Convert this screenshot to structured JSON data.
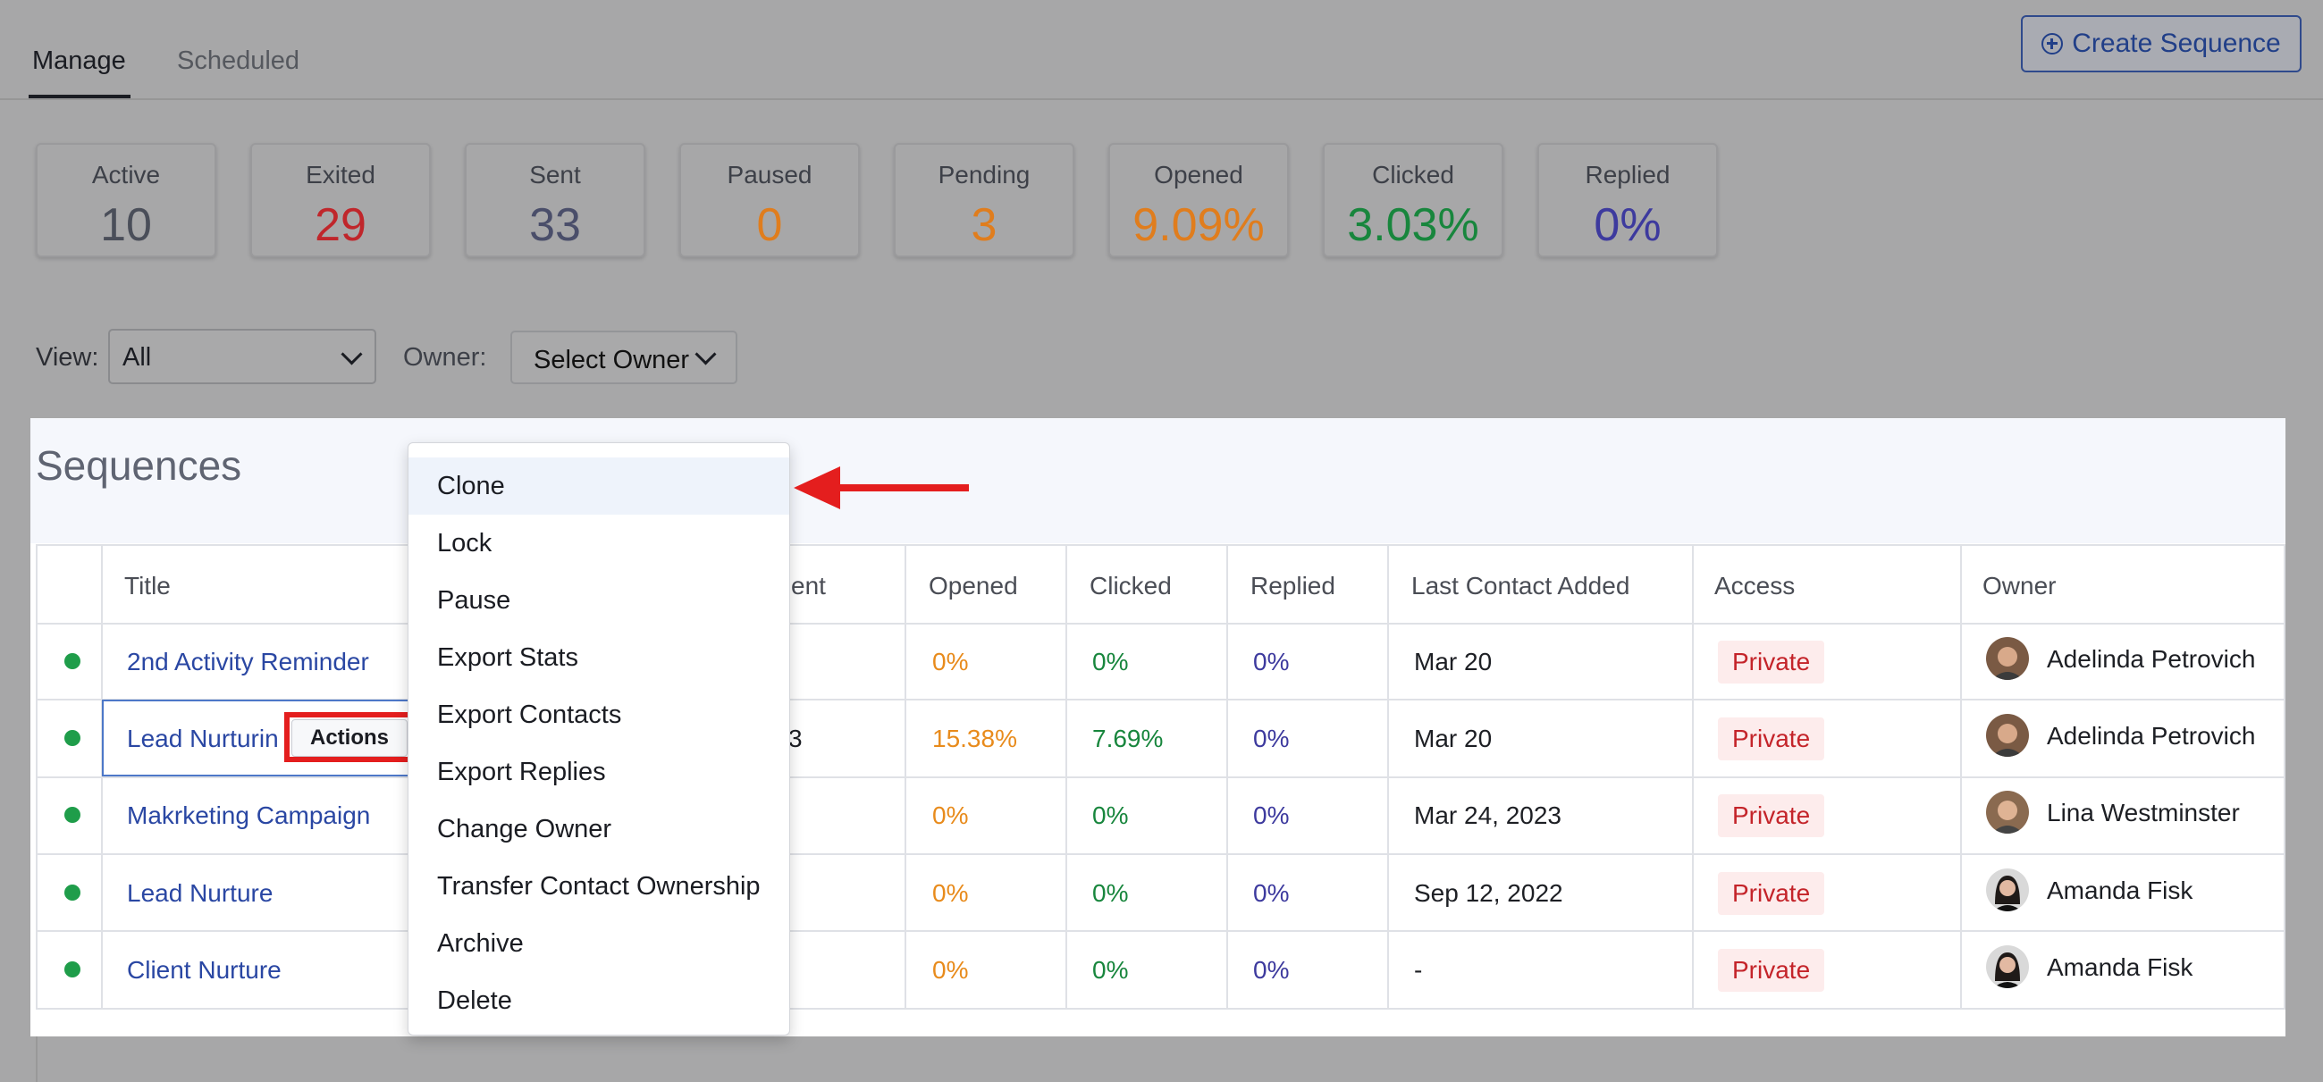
{
  "tabs": [
    {
      "label": "Manage"
    },
    {
      "label": "Scheduled"
    }
  ],
  "create_button": "Create Sequence",
  "stats": [
    {
      "label": "Active",
      "value": "10",
      "color": "#4a4e59"
    },
    {
      "label": "Exited",
      "value": "29",
      "color": "#c0262b"
    },
    {
      "label": "Sent",
      "value": "33",
      "color": "#4a4e6a"
    },
    {
      "label": "Paused",
      "value": "0",
      "color": "#e07d1d"
    },
    {
      "label": "Pending",
      "value": "3",
      "color": "#e07d1d"
    },
    {
      "label": "Opened",
      "value": "9.09%",
      "color": "#e07d1d"
    },
    {
      "label": "Clicked",
      "value": "3.03%",
      "color": "#18863d"
    },
    {
      "label": "Replied",
      "value": "0%",
      "color": "#3d3a9e"
    }
  ],
  "filters": {
    "view_label": "View:",
    "view_value": "All",
    "owner_label": "Owner:",
    "owner_value": "Select Owner"
  },
  "panel_title": "Sequences",
  "table": {
    "headers": [
      "Title",
      "ent",
      "Opened",
      "Clicked",
      "Replied",
      "Last Contact Added",
      "Access",
      "Owner"
    ],
    "rows": [
      {
        "title": "2nd Activity Reminder",
        "sent": "",
        "opened": "0%",
        "clicked": "0%",
        "replied": "0%",
        "last": "Mar 20",
        "access": "Private",
        "owner": "Adelinda Petrovich"
      },
      {
        "title": "Lead Nurturin",
        "sent": "3",
        "opened": "15.38%",
        "clicked": "7.69%",
        "replied": "0%",
        "last": "Mar 20",
        "access": "Private",
        "owner": "Adelinda Petrovich"
      },
      {
        "title": "Makrketing Campaign",
        "sent": "",
        "opened": "0%",
        "clicked": "0%",
        "replied": "0%",
        "last": "Mar 24, 2023",
        "access": "Private",
        "owner": "Lina Westminster"
      },
      {
        "title": "Lead Nurture",
        "sent": "",
        "opened": "0%",
        "clicked": "0%",
        "replied": "0%",
        "last": "Sep 12, 2022",
        "access": "Private",
        "owner": "Amanda Fisk"
      },
      {
        "title": "Client Nurture",
        "sent": "",
        "opened": "0%",
        "clicked": "0%",
        "replied": "0%",
        "last": "-",
        "access": "Private",
        "owner": "Amanda Fisk"
      }
    ]
  },
  "actions_button": "Actions",
  "menu_items": [
    "Clone",
    "Lock",
    "Pause",
    "Export Stats",
    "Export Contacts",
    "Export Replies",
    "Change Owner",
    "Transfer Contact Ownership",
    "Archive",
    "Delete"
  ]
}
